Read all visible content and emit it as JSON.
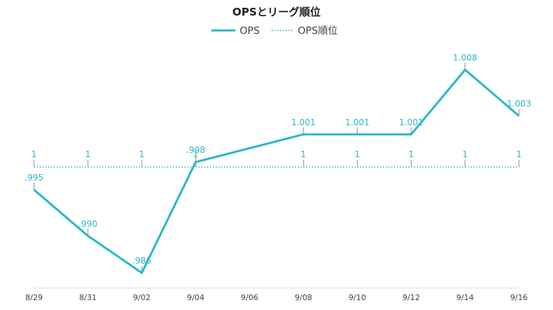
{
  "chart_data": {
    "type": "line",
    "title": "OPSとリーグ順位",
    "legend": {
      "position": "top-center"
    },
    "x": [
      "8/29",
      "8/31",
      "9/02",
      "9/04",
      "9/06",
      "9/08",
      "9/10",
      "9/12",
      "9/14",
      "9/16"
    ],
    "x_tick_labels": [
      "8/29",
      "8/31",
      "9/02",
      "9/04",
      "9/06",
      "9/08",
      "9/10",
      "9/12",
      "9/14",
      "9/16"
    ],
    "grid": false,
    "series": [
      {
        "name": "OPS",
        "style": "solid",
        "color": "#2bb8c8",
        "x": [
          "8/29",
          "8/31",
          "9/02",
          "9/04",
          "9/08",
          "9/10",
          "9/12",
          "9/14",
          "9/16"
        ],
        "values": [
          0.995,
          0.99,
          0.986,
          0.998,
          1.001,
          1.001,
          1.001,
          1.008,
          1.003
        ],
        "labels": [
          ".995",
          ".990",
          ".986",
          ".998",
          "1.001",
          "1.001",
          "1.001",
          "1.008",
          "1.003"
        ],
        "ylim": [
          0.9855,
          1.0085
        ]
      },
      {
        "name": "OPS順位",
        "style": "dotted",
        "color": "#2bb8c8",
        "x": [
          "8/29",
          "8/31",
          "9/02",
          "9/04",
          "9/08",
          "9/10",
          "9/12",
          "9/14",
          "9/16"
        ],
        "values": [
          1,
          1,
          1,
          1,
          1,
          1,
          1,
          1,
          1
        ],
        "labels": [
          "1",
          "1",
          "1",
          "1",
          "1",
          "1",
          "1",
          "1",
          "1"
        ]
      }
    ]
  }
}
